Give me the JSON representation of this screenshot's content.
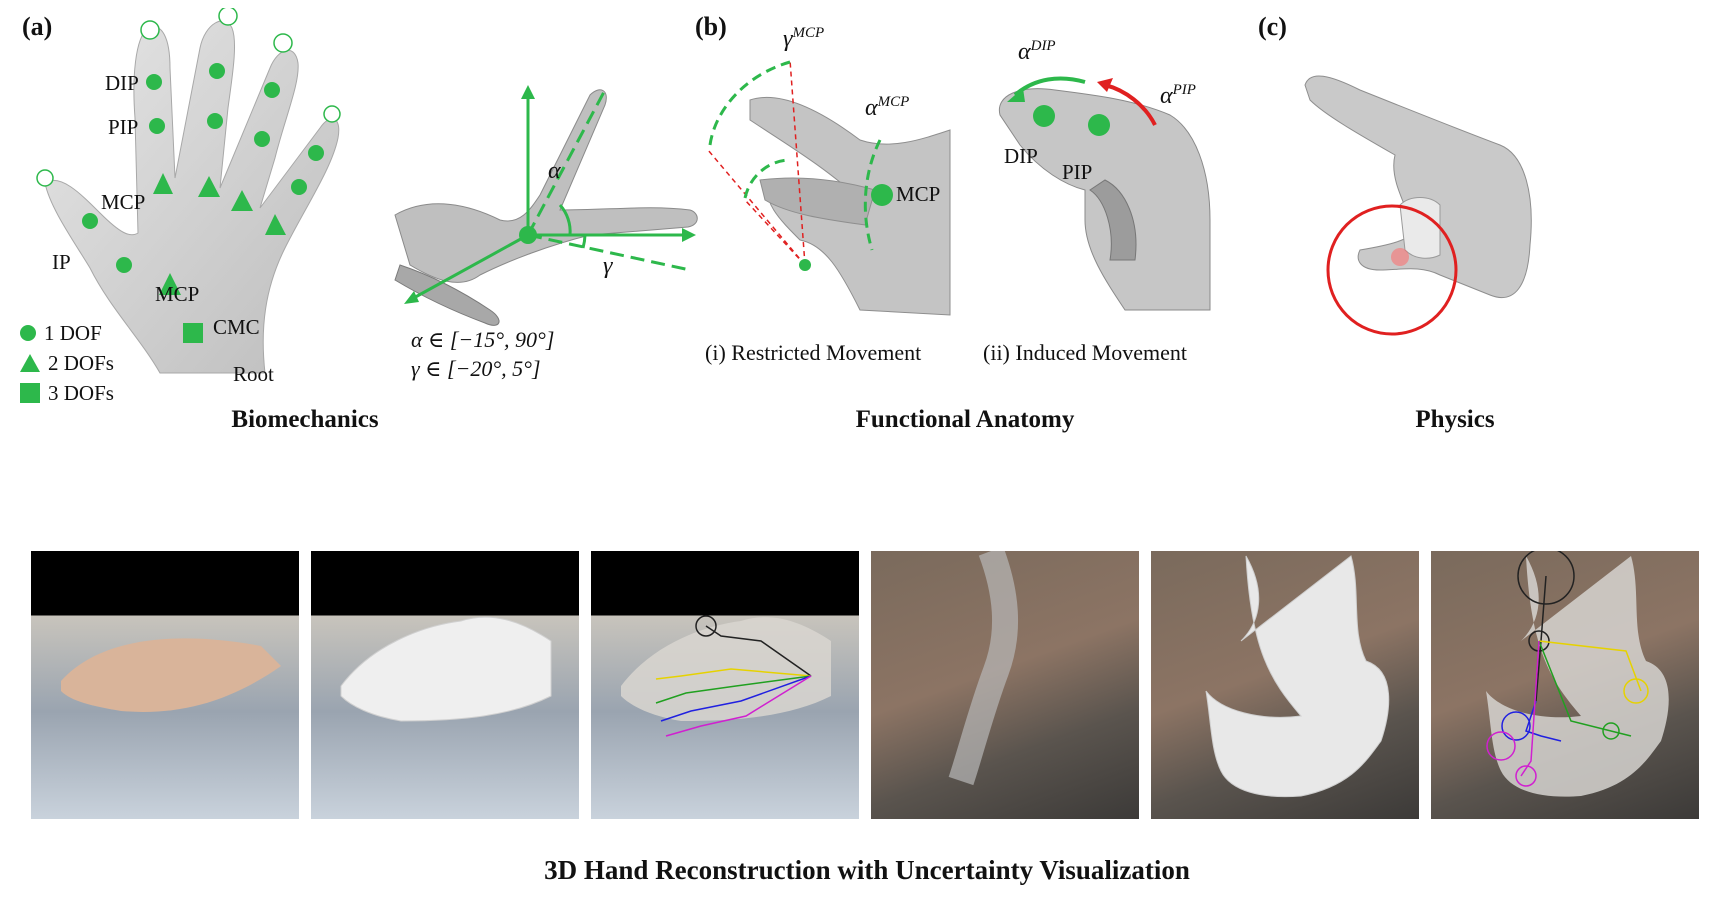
{
  "panels": {
    "a": {
      "letter": "(a)",
      "joint_labels": {
        "dip": "DIP",
        "pip": "PIP",
        "mcp_top": "MCP",
        "ip": "IP",
        "mcp_thumb": "MCP",
        "cmc": "CMC",
        "root": "Root"
      },
      "legend": [
        {
          "shape": "circle",
          "label": "1 DOF"
        },
        {
          "shape": "triangle",
          "label": "2 DOFs"
        },
        {
          "shape": "square",
          "label": "3 DOFs"
        }
      ],
      "alpha": "α",
      "gamma": "γ",
      "alpha_range": "α ∈ [−15°, 90°]",
      "gamma_range": "γ ∈ [−20°, 5°]"
    },
    "b": {
      "letter": "(b)",
      "gamma_mcp": {
        "sym": "γ",
        "sup": "MCP"
      },
      "alpha_mcp": {
        "sym": "α",
        "sup": "MCP"
      },
      "alpha_dip": {
        "sym": "α",
        "sup": "DIP"
      },
      "alpha_pip": {
        "sym": "α",
        "sup": "PIP"
      },
      "mcp_label": "MCP",
      "dip_label": "DIP",
      "pip_label": "PIP",
      "caption_i": "(i) Restricted Movement",
      "caption_ii": "(ii) Induced Movement"
    },
    "c": {
      "letter": "(c)"
    }
  },
  "section_titles": {
    "biomechanics": "Biomechanics",
    "functional_anatomy": "Functional Anatomy",
    "physics": "Physics"
  },
  "bottom_caption": "3D Hand Reconstruction with Uncertainty Visualization",
  "colors": {
    "green": "#2db84b",
    "red": "#e02020",
    "hand_gray": "#c9c9c9",
    "yellow": "#e6d200",
    "blue": "#2020e0",
    "magenta": "#d020d0"
  }
}
